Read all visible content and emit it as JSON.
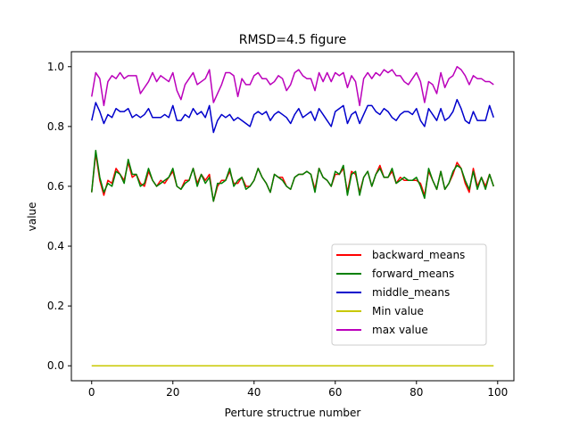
{
  "chart_data": {
    "type": "line",
    "title": "RMSD=4.5 figure",
    "xlabel": "Perture structrue number",
    "ylabel": "value",
    "xlim": [
      -5,
      104
    ],
    "ylim": [
      -0.05,
      1.05
    ],
    "xticks": [
      0,
      20,
      40,
      60,
      80,
      100
    ],
    "yticks": [
      0.0,
      0.2,
      0.4,
      0.6,
      0.8,
      1.0
    ],
    "xtick_labels": [
      "0",
      "20",
      "40",
      "60",
      "80",
      "100"
    ],
    "ytick_labels": [
      "0.0",
      "0.2",
      "0.4",
      "0.6",
      "0.8",
      "1.0"
    ],
    "grid": false,
    "legend_position": "lower-right",
    "series": [
      {
        "name": "backward_means",
        "color": "#ff0000",
        "values": [
          0.58,
          0.71,
          0.62,
          0.57,
          0.62,
          0.61,
          0.66,
          0.64,
          0.62,
          0.68,
          0.63,
          0.64,
          0.61,
          0.6,
          0.65,
          0.62,
          0.6,
          0.62,
          0.61,
          0.63,
          0.65,
          0.6,
          0.59,
          0.62,
          0.62,
          0.66,
          0.61,
          0.64,
          0.62,
          0.64,
          0.55,
          0.6,
          0.62,
          0.62,
          0.65,
          0.61,
          0.61,
          0.63,
          0.6,
          0.6,
          0.62,
          0.66,
          0.63,
          0.61,
          0.58,
          0.64,
          0.63,
          0.63,
          0.6,
          0.59,
          0.63,
          0.64,
          0.64,
          0.65,
          0.64,
          0.59,
          0.66,
          0.63,
          0.62,
          0.6,
          0.64,
          0.64,
          0.66,
          0.58,
          0.65,
          0.64,
          0.58,
          0.63,
          0.65,
          0.6,
          0.64,
          0.67,
          0.63,
          0.63,
          0.65,
          0.61,
          0.63,
          0.62,
          0.62,
          0.62,
          0.62,
          0.61,
          0.57,
          0.65,
          0.62,
          0.59,
          0.65,
          0.59,
          0.61,
          0.64,
          0.68,
          0.66,
          0.61,
          0.58,
          0.66,
          0.6,
          0.63,
          0.6,
          0.64,
          0.6
        ]
      },
      {
        "name": "forward_means",
        "color": "#008000",
        "values": [
          0.58,
          0.72,
          0.63,
          0.58,
          0.61,
          0.6,
          0.65,
          0.64,
          0.61,
          0.69,
          0.64,
          0.64,
          0.6,
          0.61,
          0.66,
          0.62,
          0.6,
          0.61,
          0.62,
          0.63,
          0.66,
          0.6,
          0.59,
          0.61,
          0.62,
          0.66,
          0.6,
          0.64,
          0.61,
          0.63,
          0.55,
          0.61,
          0.61,
          0.62,
          0.66,
          0.6,
          0.62,
          0.63,
          0.59,
          0.6,
          0.62,
          0.66,
          0.63,
          0.61,
          0.58,
          0.64,
          0.63,
          0.62,
          0.6,
          0.59,
          0.63,
          0.64,
          0.64,
          0.65,
          0.64,
          0.58,
          0.66,
          0.63,
          0.62,
          0.6,
          0.65,
          0.64,
          0.67,
          0.57,
          0.64,
          0.65,
          0.57,
          0.63,
          0.65,
          0.6,
          0.64,
          0.66,
          0.63,
          0.63,
          0.66,
          0.61,
          0.62,
          0.63,
          0.62,
          0.62,
          0.63,
          0.6,
          0.56,
          0.66,
          0.62,
          0.59,
          0.65,
          0.59,
          0.61,
          0.65,
          0.67,
          0.66,
          0.62,
          0.59,
          0.65,
          0.59,
          0.63,
          0.59,
          0.64,
          0.6
        ]
      },
      {
        "name": "middle_means",
        "color": "#0000cc",
        "values": [
          0.82,
          0.88,
          0.85,
          0.81,
          0.84,
          0.83,
          0.86,
          0.85,
          0.85,
          0.86,
          0.83,
          0.84,
          0.83,
          0.84,
          0.86,
          0.83,
          0.83,
          0.83,
          0.84,
          0.83,
          0.87,
          0.82,
          0.82,
          0.84,
          0.83,
          0.86,
          0.84,
          0.85,
          0.83,
          0.87,
          0.78,
          0.82,
          0.84,
          0.83,
          0.84,
          0.82,
          0.83,
          0.82,
          0.81,
          0.8,
          0.84,
          0.85,
          0.84,
          0.85,
          0.82,
          0.84,
          0.85,
          0.84,
          0.83,
          0.81,
          0.84,
          0.86,
          0.83,
          0.84,
          0.85,
          0.82,
          0.86,
          0.84,
          0.82,
          0.8,
          0.85,
          0.86,
          0.87,
          0.81,
          0.84,
          0.85,
          0.81,
          0.84,
          0.87,
          0.87,
          0.85,
          0.84,
          0.86,
          0.85,
          0.83,
          0.82,
          0.84,
          0.85,
          0.85,
          0.84,
          0.86,
          0.82,
          0.8,
          0.86,
          0.84,
          0.82,
          0.86,
          0.82,
          0.83,
          0.85,
          0.89,
          0.86,
          0.82,
          0.81,
          0.85,
          0.82,
          0.82,
          0.82,
          0.87,
          0.83
        ]
      },
      {
        "name": "Min value",
        "color": "#c8c800",
        "values": [
          0.0,
          0.0,
          0.0,
          0.0,
          0.0,
          0.0,
          0.0,
          0.0,
          0.0,
          0.0,
          0.0,
          0.0,
          0.0,
          0.0,
          0.0,
          0.0,
          0.0,
          0.0,
          0.0,
          0.0,
          0.0,
          0.0,
          0.0,
          0.0,
          0.0,
          0.0,
          0.0,
          0.0,
          0.0,
          0.0,
          0.0,
          0.0,
          0.0,
          0.0,
          0.0,
          0.0,
          0.0,
          0.0,
          0.0,
          0.0,
          0.0,
          0.0,
          0.0,
          0.0,
          0.0,
          0.0,
          0.0,
          0.0,
          0.0,
          0.0,
          0.0,
          0.0,
          0.0,
          0.0,
          0.0,
          0.0,
          0.0,
          0.0,
          0.0,
          0.0,
          0.0,
          0.0,
          0.0,
          0.0,
          0.0,
          0.0,
          0.0,
          0.0,
          0.0,
          0.0,
          0.0,
          0.0,
          0.0,
          0.0,
          0.0,
          0.0,
          0.0,
          0.0,
          0.0,
          0.0,
          0.0,
          0.0,
          0.0,
          0.0,
          0.0,
          0.0,
          0.0,
          0.0,
          0.0,
          0.0,
          0.0,
          0.0,
          0.0,
          0.0,
          0.0,
          0.0,
          0.0,
          0.0,
          0.0,
          0.0
        ]
      },
      {
        "name": "max value",
        "color": "#bb00bb",
        "values": [
          0.9,
          0.98,
          0.96,
          0.87,
          0.95,
          0.97,
          0.96,
          0.98,
          0.96,
          0.97,
          0.97,
          0.97,
          0.91,
          0.93,
          0.95,
          0.98,
          0.95,
          0.97,
          0.96,
          0.95,
          0.98,
          0.92,
          0.89,
          0.94,
          0.96,
          0.98,
          0.94,
          0.95,
          0.96,
          0.99,
          0.88,
          0.91,
          0.94,
          0.98,
          0.98,
          0.97,
          0.9,
          0.96,
          0.94,
          0.94,
          0.97,
          0.98,
          0.96,
          0.96,
          0.94,
          0.95,
          0.97,
          0.96,
          0.92,
          0.94,
          0.98,
          0.99,
          0.97,
          0.96,
          0.96,
          0.92,
          0.98,
          0.95,
          0.98,
          0.95,
          0.98,
          0.97,
          0.98,
          0.93,
          0.97,
          0.95,
          0.87,
          0.96,
          0.98,
          0.96,
          0.98,
          0.97,
          0.99,
          0.98,
          0.99,
          0.97,
          0.97,
          0.95,
          0.94,
          0.96,
          0.98,
          0.95,
          0.88,
          0.95,
          0.94,
          0.91,
          0.98,
          0.93,
          0.96,
          0.97,
          1.0,
          0.99,
          0.97,
          0.94,
          0.97,
          0.96,
          0.96,
          0.95,
          0.95,
          0.94
        ]
      }
    ]
  }
}
